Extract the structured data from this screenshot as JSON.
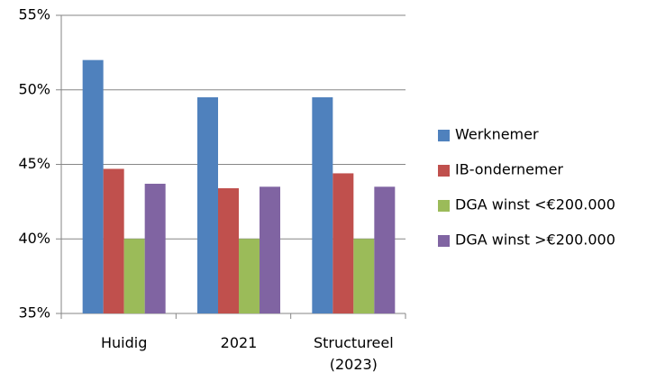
{
  "chart_data": {
    "type": "bar",
    "categories": [
      "Huidig",
      "2021",
      "Structureel (2023)"
    ],
    "series": [
      {
        "name": "Werknemer",
        "color": "#4f81bd",
        "values": [
          52.0,
          49.5,
          49.5
        ]
      },
      {
        "name": "IB-ondernemer",
        "color": "#c0504d",
        "values": [
          44.7,
          43.4,
          44.4
        ]
      },
      {
        "name": "DGA winst <€200.000",
        "color": "#9bbb59",
        "values": [
          40.0,
          40.0,
          40.0
        ]
      },
      {
        "name": "DGA winst >€200.000",
        "color": "#8064a2",
        "values": [
          43.7,
          43.5,
          43.5
        ]
      }
    ],
    "ylim": [
      35,
      55
    ],
    "yticks": [
      {
        "value": 35,
        "label": "35%"
      },
      {
        "value": 40,
        "label": "40%"
      },
      {
        "value": 45,
        "label": "45%"
      },
      {
        "value": 50,
        "label": "50%"
      },
      {
        "value": 55,
        "label": "55%"
      }
    ],
    "grid": true,
    "legend": "right"
  }
}
